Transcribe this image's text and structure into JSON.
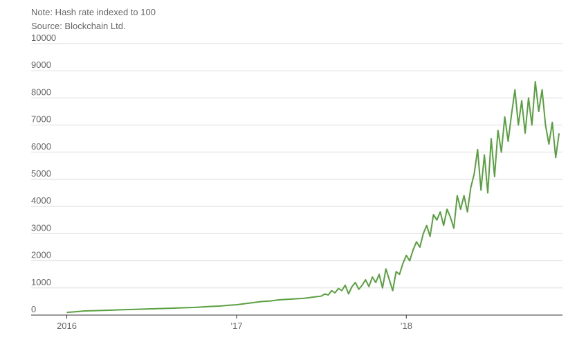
{
  "chart_data": {
    "type": "line",
    "notes": [
      "Note: Hash rate indexed to 100",
      "Source: Blockchain Ltd."
    ],
    "x": [
      2016.0,
      2016.05,
      2016.1,
      2016.15,
      2016.2,
      2016.25,
      2016.3,
      2016.35,
      2016.4,
      2016.45,
      2016.5,
      2016.55,
      2016.6,
      2016.65,
      2016.7,
      2016.75,
      2016.8,
      2016.85,
      2016.9,
      2016.95,
      2017.0,
      2017.05,
      2017.1,
      2017.15,
      2017.2,
      2017.25,
      2017.3,
      2017.35,
      2017.4,
      2017.45,
      2017.5,
      2017.52,
      2017.54,
      2017.56,
      2017.58,
      2017.6,
      2017.62,
      2017.64,
      2017.66,
      2017.68,
      2017.7,
      2017.72,
      2017.74,
      2017.76,
      2017.78,
      2017.8,
      2017.82,
      2017.84,
      2017.86,
      2017.88,
      2017.9,
      2017.92,
      2017.94,
      2017.96,
      2017.98,
      2018.0,
      2018.02,
      2018.04,
      2018.06,
      2018.08,
      2018.1,
      2018.12,
      2018.14,
      2018.16,
      2018.18,
      2018.2,
      2018.22,
      2018.24,
      2018.26,
      2018.28,
      2018.3,
      2018.32,
      2018.34,
      2018.36,
      2018.38,
      2018.4,
      2018.42,
      2018.44,
      2018.46,
      2018.48,
      2018.5,
      2018.52,
      2018.54,
      2018.56,
      2018.58,
      2018.6,
      2018.62,
      2018.64,
      2018.66,
      2018.68,
      2018.7,
      2018.72,
      2018.74,
      2018.76,
      2018.78,
      2018.8,
      2018.82,
      2018.84,
      2018.86,
      2018.88,
      2018.9
    ],
    "series": [
      {
        "color": "#58a040",
        "values": [
          100,
          120,
          150,
          160,
          170,
          180,
          190,
          200,
          210,
          220,
          230,
          240,
          250,
          260,
          270,
          280,
          300,
          320,
          330,
          360,
          380,
          420,
          460,
          500,
          520,
          560,
          580,
          600,
          620,
          660,
          700,
          780,
          740,
          900,
          820,
          980,
          900,
          1100,
          780,
          1050,
          1200,
          950,
          1100,
          1300,
          1050,
          1400,
          1200,
          1500,
          1000,
          1700,
          1300,
          900,
          1600,
          1500,
          1900,
          2200,
          2000,
          2400,
          2700,
          2500,
          3000,
          3300,
          2900,
          3700,
          3500,
          3800,
          3300,
          3900,
          3600,
          3200,
          4400,
          3900,
          4400,
          3800,
          4700,
          5200,
          6100,
          4600,
          5900,
          4500,
          6500,
          5100,
          6800,
          6000,
          7300,
          6400,
          7400,
          8300,
          7000,
          7900,
          6700,
          8000,
          7000,
          8600,
          7500,
          8300,
          7000,
          6300,
          7100,
          5800,
          6700
        ]
      }
    ],
    "xlim": [
      2015.79,
      2018.92
    ],
    "xticks": [
      {
        "value": 2016,
        "label": "2016"
      },
      {
        "value": 2017,
        "label": "’17"
      },
      {
        "value": 2018,
        "label": "’18"
      }
    ],
    "ylim": [
      0,
      10000
    ],
    "yticks": [
      0,
      1000,
      2000,
      3000,
      4000,
      5000,
      6000,
      7000,
      8000,
      9000,
      10000
    ],
    "grid": true
  }
}
